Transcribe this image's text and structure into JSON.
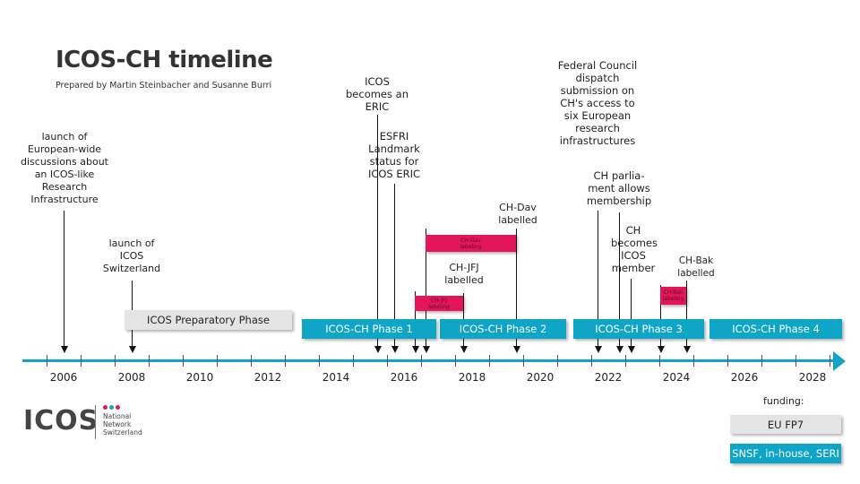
{
  "title": "ICOS-CH timeline",
  "subtitle": "Prepared by Martin Steinbacher and Susanne Burri",
  "years": [
    "2006",
    "2008",
    "2010",
    "2012",
    "2014",
    "2016",
    "2018",
    "2020",
    "2022",
    "2024",
    "2026",
    "2028"
  ],
  "phases": [
    {
      "label": "ICOS Preparatory Phase",
      "funding": "EU FP7"
    },
    {
      "label": "ICOS-CH Phase 1",
      "funding": "SNSF, in-house, SERI"
    },
    {
      "label": "ICOS-CH Phase 2",
      "funding": "SNSF, in-house, SERI"
    },
    {
      "label": "ICOS-CH Phase 3",
      "funding": "SNSF, in-house, SERI"
    },
    {
      "label": "ICOS-CH Phase 4",
      "funding": "SNSF, in-house, SERI"
    }
  ],
  "labeling": [
    {
      "label": "CH-Dav labeling"
    },
    {
      "label": "CH-JFJ labeling"
    },
    {
      "label": "CH-Bak labeling"
    }
  ],
  "events": [
    {
      "label": "launch of European-wide discussions about an ICOS-like Research Infrastructure"
    },
    {
      "label": "launch of ICOS Switzerland"
    },
    {
      "label": "ICOS becomes an ERIC"
    },
    {
      "label": "ESFRI Landmark status for ICOS ERIC"
    },
    {
      "label": "CH-JFJ labelled"
    },
    {
      "label": "CH-Dav labelled"
    },
    {
      "label": "Federal Council dispatch submission on CH's access to six European research infrastructures"
    },
    {
      "label": "CH parlia-ment allows membership"
    },
    {
      "label": "CH becomes ICOS member"
    },
    {
      "label": "CH-Bak labelled"
    }
  ],
  "funding": {
    "heading": "funding:",
    "items": [
      "EU FP7",
      "SNSF, in-house, SERI"
    ]
  },
  "logo": {
    "text": "ICOS",
    "sub": "National Network Switzerland"
  },
  "colors": {
    "teal": "#0ea5c6",
    "pink": "#e3165b",
    "grey": "#e4e4e4"
  }
}
